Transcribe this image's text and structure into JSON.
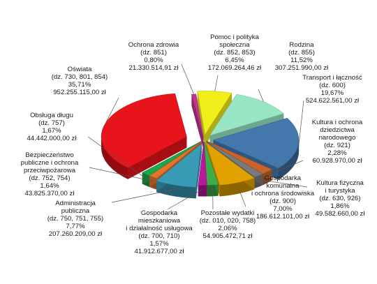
{
  "chart_data": {
    "type": "pie",
    "title": "",
    "style": "3d-exploded",
    "legend": "none",
    "slices": [
      {
        "name_lines": [
          "Pomoc i polityka",
          "społeczna"
        ],
        "code": "(dz. 852, 853)",
        "percent_label": "6,45%",
        "amount_label": "172.069.264,46 zł",
        "value": 6.45,
        "color": "#f2ee1c"
      },
      {
        "name_lines": [
          "Rodzina"
        ],
        "code": "(dz. 855)",
        "percent_label": "11,52%",
        "amount_label": "307.251.990,00 zł",
        "value": 11.52,
        "color": "#98e6c4"
      },
      {
        "name_lines": [
          "Transport i łączność"
        ],
        "code": "(dz. 600)",
        "percent_label": "19,67%",
        "amount_label": "524.622.561,00 zł",
        "value": 19.67,
        "color": "#4478ad"
      },
      {
        "name_lines": [
          "Kultura i ochrona",
          "dziedzictwa",
          "narodowego"
        ],
        "code": "(dz. 921)",
        "percent_label": "2,28%",
        "amount_label": "60.928.970,00 zł",
        "value": 2.28,
        "color": "#c8642a"
      },
      {
        "name_lines": [
          "Kultura fizyczna",
          "i turystyka"
        ],
        "code": "(dz. 630, 926)",
        "percent_label": "1,86%",
        "amount_label": "49.582.660,00 zł",
        "value": 1.86,
        "color": "#7a7a7a"
      },
      {
        "name_lines": [
          "Gospodarka",
          "komunalna",
          "i ochrona środowiska"
        ],
        "code": "(dz. 900)",
        "percent_label": "7,00%",
        "amount_label": "186.612.101,00 zł",
        "value": 7.0,
        "color": "#e1a100"
      },
      {
        "name_lines": [
          "Pozostałe wydatki"
        ],
        "code": "(dz. 010, 020, 758)",
        "percent_label": "2,06%",
        "amount_label": "54.905.472,71 zł",
        "value": 2.06,
        "color": "#3fae49"
      },
      {
        "name_lines": [
          "Gospodarka",
          "mieszkaniowa",
          "i działalność usługowa"
        ],
        "code": "(dz. 700, 710)",
        "percent_label": "1,57%",
        "amount_label": "41.912.677,00 zł",
        "value": 1.57,
        "color": "#b8179e"
      },
      {
        "name_lines": [
          "Administracja",
          "publiczna"
        ],
        "code": "(dz. 750, 751, 755)",
        "percent_label": "7,77%",
        "amount_label": "207.260.209,00 zł",
        "value": 7.77,
        "color": "#3a9bb6"
      },
      {
        "name_lines": [
          "Bezpieczeństwo",
          "publiczne i ochrona",
          "przeciwpożarowa"
        ],
        "code": "(dz. 752, 754)",
        "percent_label": "1,64%",
        "amount_label": "43.825.370,00 zł",
        "value": 1.64,
        "color": "#e3742c"
      },
      {
        "name_lines": [
          "Obsługa długu"
        ],
        "code": "(dz. 757)",
        "percent_label": "1,67%",
        "amount_label": "44.442.000,00 zł",
        "value": 1.67,
        "color": "#1fa64b"
      },
      {
        "name_lines": [
          "Oświata"
        ],
        "code": "(dz. 730, 801, 854)",
        "percent_label": "35,71%",
        "amount_label": "952.255.115,00 zł",
        "value": 35.71,
        "color": "#e8141b"
      },
      {
        "name_lines": [
          "Ochrona zdrowia"
        ],
        "code": "(dz. 851)",
        "percent_label": "0,80%",
        "amount_label": "21.330.514,91 zł",
        "value": 0.8,
        "color": "#c2368f"
      }
    ]
  }
}
